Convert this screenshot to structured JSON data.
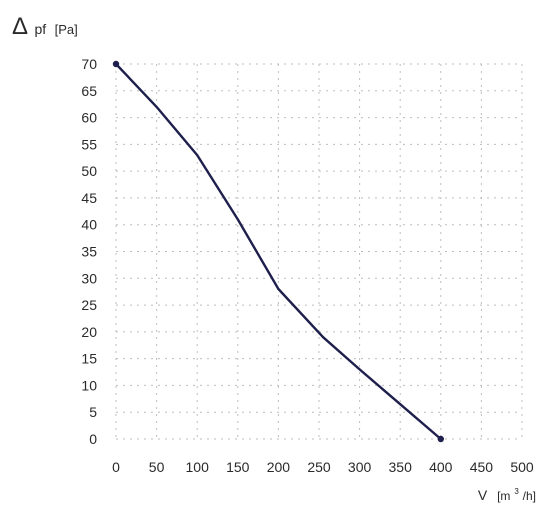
{
  "chart_data": {
    "type": "line",
    "title": "",
    "ylabel": {
      "symbol": "Δ",
      "subscript": "pf",
      "unit": "[Pa]"
    },
    "xlabel": {
      "symbol": "V",
      "unit_prefix": "[m",
      "unit_sup": "3",
      "unit_suffix": "/h]"
    },
    "xlim": [
      0,
      500
    ],
    "ylim": [
      0,
      70
    ],
    "x_ticks": [
      0,
      50,
      100,
      150,
      200,
      250,
      300,
      350,
      400,
      450,
      500
    ],
    "y_ticks": [
      0,
      5,
      10,
      15,
      20,
      25,
      30,
      35,
      40,
      45,
      50,
      55,
      60,
      65,
      70
    ],
    "grid": true,
    "series": [
      {
        "color": "#1f1f4d",
        "points": [
          {
            "x": 0,
            "y": 70
          },
          {
            "x": 50,
            "y": 62
          },
          {
            "x": 100,
            "y": 53
          },
          {
            "x": 150,
            "y": 41
          },
          {
            "x": 200,
            "y": 28
          },
          {
            "x": 255,
            "y": 19
          },
          {
            "x": 300,
            "y": 13
          },
          {
            "x": 350,
            "y": 6.5
          },
          {
            "x": 400,
            "y": 0
          }
        ],
        "endpoint_markers": true
      }
    ]
  }
}
